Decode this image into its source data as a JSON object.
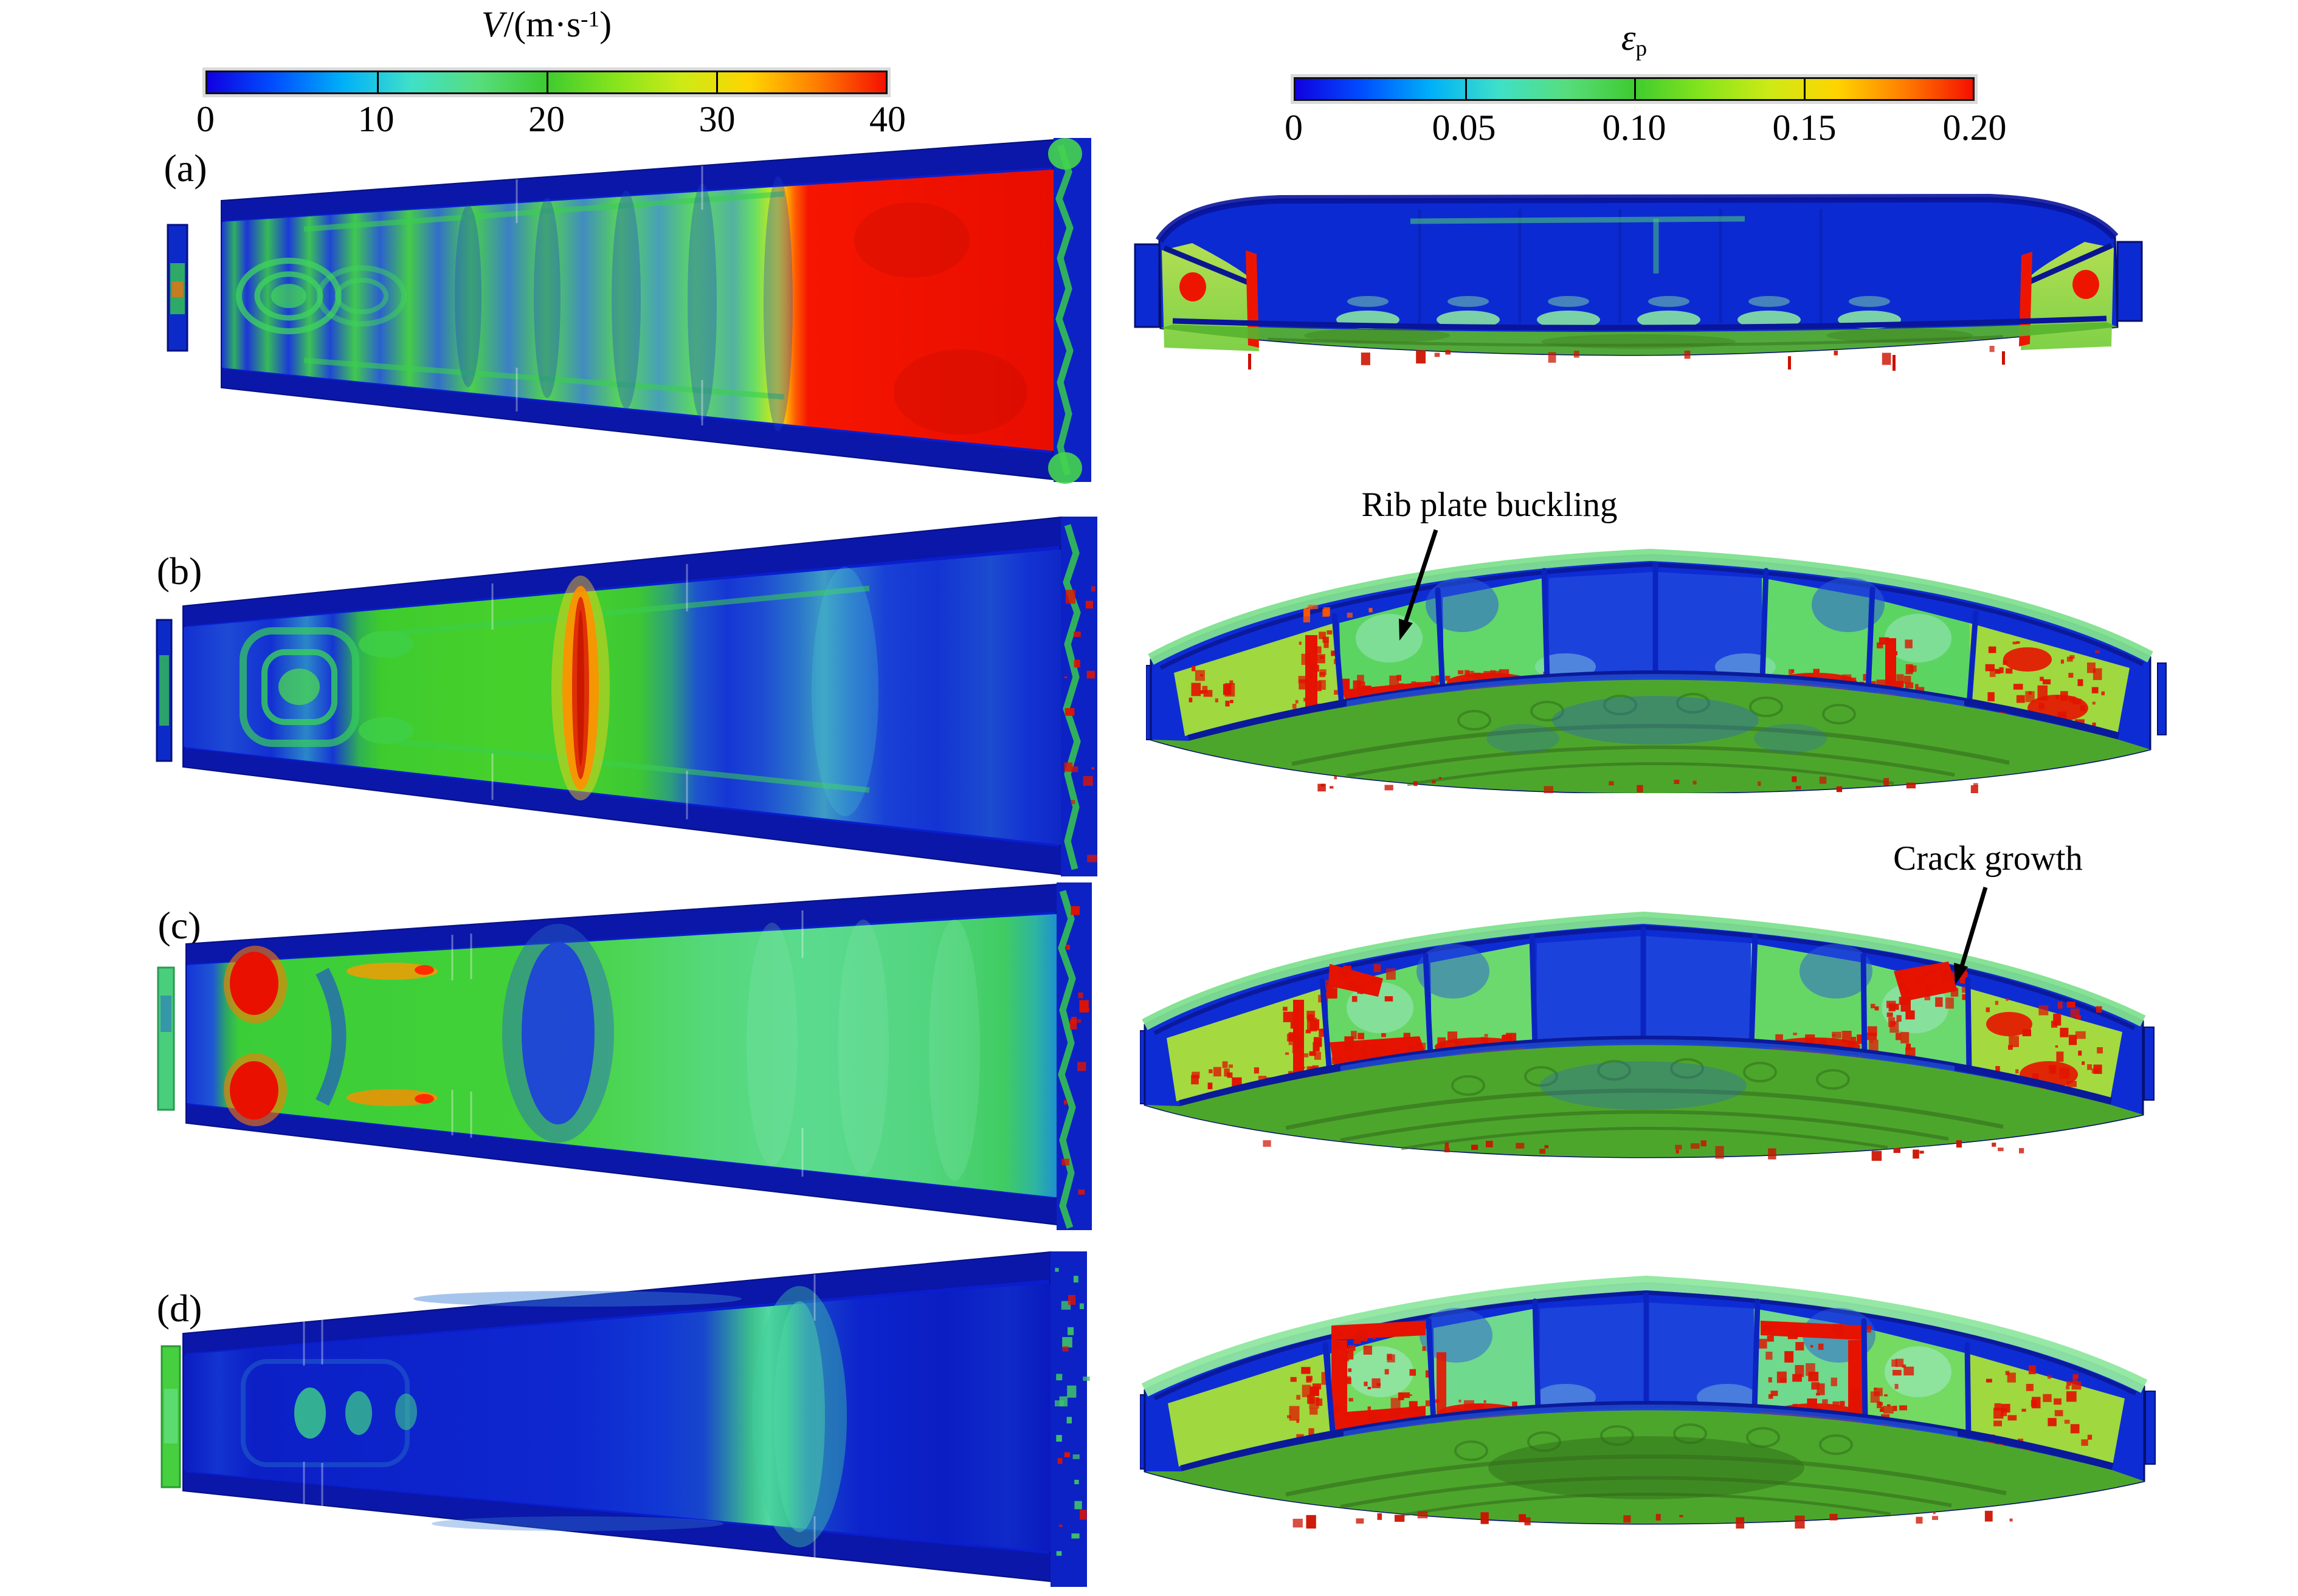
{
  "colorbars": {
    "velocity": {
      "symbol": "V",
      "unit_prefix": "/(m·s",
      "exponent": "-1",
      "unit_suffix": ")",
      "ticks": [
        "0",
        "10",
        "20",
        "30",
        "40"
      ]
    },
    "strain": {
      "symbol": "ε",
      "subscript": "p",
      "ticks": [
        "0",
        "0.05",
        "0.10",
        "0.15",
        "0.20"
      ]
    }
  },
  "rows": [
    {
      "label": "(a)"
    },
    {
      "label": "(b)"
    },
    {
      "label": "(c)"
    },
    {
      "label": "(d)"
    }
  ],
  "annotations": {
    "rib_plate_buckling": "Rib plate buckling",
    "crack_growth": "Crack growth"
  },
  "palette": {
    "page_background": "#ffffff",
    "colormap": [
      "#1000e0",
      "#0050ff",
      "#00b0f8",
      "#3fe0c8",
      "#57dd7d",
      "#3ecb2f",
      "#86e41c",
      "#cdea16",
      "#ffd400",
      "#ff7c00",
      "#f51000"
    ],
    "deep_blue": "#0c24cc",
    "navy_edge": "#0a17a8",
    "green_mid": "#3ecb2f",
    "red_max": "#ee1300",
    "text_color": "#000000"
  }
}
